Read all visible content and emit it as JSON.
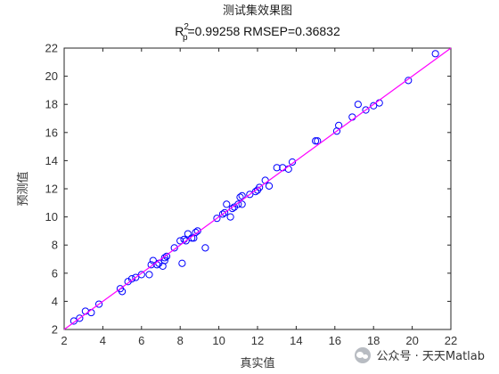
{
  "chart_data": {
    "type": "scatter",
    "title": "测试集效果图",
    "subtitle_prefix": "R",
    "subtitle_sub": "p",
    "subtitle_sup": "2",
    "subtitle_rest": "=0.99258  RMSEP=0.36832",
    "xlabel": "真实值",
    "ylabel": "预测值",
    "xlim": [
      2,
      22
    ],
    "ylim": [
      2,
      22
    ],
    "xticks": [
      2,
      4,
      6,
      8,
      10,
      12,
      14,
      16,
      18,
      20,
      22
    ],
    "yticks": [
      2,
      4,
      6,
      8,
      10,
      12,
      14,
      16,
      18,
      20,
      22
    ],
    "grid": false,
    "series": [
      {
        "marker": "circle",
        "color": "#0000ff",
        "x": [
          2.5,
          2.8,
          3.1,
          3.4,
          3.8,
          4.9,
          5.0,
          5.3,
          5.5,
          5.7,
          6.0,
          6.4,
          6.5,
          6.6,
          6.8,
          6.9,
          7.1,
          7.2,
          7.2,
          7.3,
          7.7,
          8.0,
          8.1,
          8.2,
          8.3,
          8.4,
          8.6,
          8.7,
          8.8,
          8.9,
          9.3,
          9.9,
          10.2,
          10.3,
          10.4,
          10.6,
          10.7,
          10.8,
          11.0,
          11.1,
          11.2,
          11.2,
          11.6,
          11.9,
          12.0,
          12.1,
          12.4,
          12.6,
          13.0,
          13.3,
          13.6,
          13.8,
          15.0,
          15.1,
          16.1,
          16.2,
          16.9,
          17.2,
          17.6,
          18.0,
          18.3,
          19.8,
          21.2
        ],
        "y": [
          2.6,
          2.8,
          3.3,
          3.2,
          3.8,
          4.9,
          4.7,
          5.4,
          5.6,
          5.7,
          5.9,
          5.9,
          6.6,
          6.9,
          6.6,
          6.7,
          6.5,
          6.9,
          7.1,
          7.2,
          7.8,
          8.3,
          6.7,
          8.4,
          8.3,
          8.8,
          8.5,
          8.5,
          8.9,
          9.0,
          7.8,
          9.9,
          10.2,
          10.3,
          10.9,
          10.0,
          10.6,
          10.7,
          10.9,
          11.4,
          10.9,
          11.5,
          11.6,
          11.8,
          11.9,
          12.1,
          12.6,
          12.2,
          13.5,
          13.5,
          13.4,
          13.9,
          15.4,
          15.4,
          16.1,
          16.5,
          17.1,
          18.0,
          17.6,
          17.9,
          18.1,
          19.7,
          21.6
        ]
      },
      {
        "kind": "reference-line",
        "color": "#ff00ff",
        "x": [
          2,
          22
        ],
        "y": [
          2,
          22
        ]
      }
    ]
  },
  "watermark": {
    "text": "公众号 · 天天Matlab"
  }
}
